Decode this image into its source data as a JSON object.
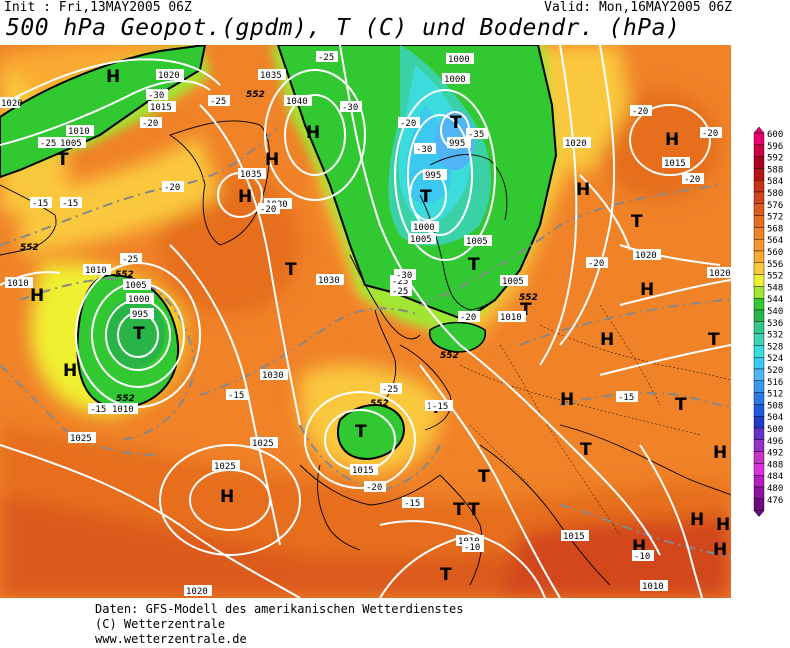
{
  "header": {
    "init": "Init : Fri,13MAY2005 06Z",
    "valid": "Valid: Mon,16MAY2005 06Z",
    "title": "500 hPa Geopot.(gpdm), T (C) und Bodendr. (hPa)"
  },
  "credits": {
    "line1": "Daten: GFS-Modell des amerikanischen Wetterdienstes",
    "line2": "(C) Wetterzentrale",
    "line3": "www.wetterzentrale.de"
  },
  "legend": {
    "levels": [
      "600",
      "596",
      "592",
      "588",
      "584",
      "580",
      "576",
      "572",
      "568",
      "564",
      "560",
      "556",
      "552",
      "548",
      "544",
      "540",
      "536",
      "532",
      "528",
      "524",
      "520",
      "516",
      "512",
      "508",
      "504",
      "500",
      "496",
      "492",
      "488",
      "484",
      "480",
      "476"
    ],
    "colors": [
      "#e8006e",
      "#c80046",
      "#a8001e",
      "#b41414",
      "#c83214",
      "#d2461e",
      "#dc5a1e",
      "#e66e1e",
      "#f08228",
      "#f59632",
      "#faaa32",
      "#fac83c",
      "#f0f032",
      "#a0e632",
      "#32c832",
      "#28b446",
      "#32c88c",
      "#3cd2b4",
      "#3cdcdc",
      "#3cc8f0",
      "#50b4f5",
      "#3c96f0",
      "#2878e6",
      "#1e5adc",
      "#1e3cc8",
      "#6432c8",
      "#9632c8",
      "#c832c8",
      "#dc32dc",
      "#b41ebe",
      "#8c14a0",
      "#6e0a82"
    ]
  },
  "map": {
    "pressure_systems": [
      {
        "label": "H"
      },
      {
        "label": "T"
      },
      {
        "label": "H"
      },
      {
        "label": "H"
      },
      {
        "label": "T"
      },
      {
        "label": "T"
      },
      {
        "label": "H"
      },
      {
        "label": "T"
      },
      {
        "label": "T"
      },
      {
        "label": "H"
      },
      {
        "label": "H"
      },
      {
        "label": "T"
      },
      {
        "label": "T"
      },
      {
        "label": "T"
      },
      {
        "label": "H"
      },
      {
        "label": "H"
      },
      {
        "label": "T"
      },
      {
        "label": "H"
      },
      {
        "label": "T"
      },
      {
        "label": "H"
      },
      {
        "label": "T"
      },
      {
        "label": "T"
      },
      {
        "label": "H"
      },
      {
        "label": "H"
      },
      {
        "label": "H"
      },
      {
        "label": "T"
      },
      {
        "label": "T"
      },
      {
        "label": "T"
      },
      {
        "label": "H"
      },
      {
        "label": "H"
      },
      {
        "label": "T"
      },
      {
        "label": "H"
      },
      {
        "label": "T"
      },
      {
        "label": "H"
      }
    ],
    "isobar_labels": [
      "1020",
      "1015",
      "1010",
      "1005",
      "1035",
      "1040",
      "1035",
      "1030",
      "1000",
      "1000",
      "995",
      "995",
      "1000",
      "1005",
      "1005",
      "1005",
      "1010",
      "1010",
      "1005",
      "1000",
      "995",
      "1010",
      "1030",
      "1030",
      "1025",
      "1025",
      "1015",
      "1010",
      "1020",
      "1015",
      "1020",
      "1020",
      "1020",
      "1025",
      "1020",
      "1010",
      "1010",
      "1015",
      "1010"
    ],
    "temperature_labels": [
      "-30",
      "-25",
      "-25",
      "-30",
      "-25",
      "-20",
      "-20",
      "-15",
      "-20",
      "-25",
      "-25",
      "-35",
      "-30",
      "-25",
      "-30",
      "-20",
      "-25",
      "-20",
      "-20",
      "-20",
      "-20",
      "-15",
      "-20",
      "-15",
      "-15",
      "-20",
      "-10",
      "-15",
      "-10",
      "-15",
      "-15"
    ],
    "geopotential_labels": [
      "552",
      "552",
      "552",
      "552",
      "552",
      "552",
      "552"
    ]
  }
}
